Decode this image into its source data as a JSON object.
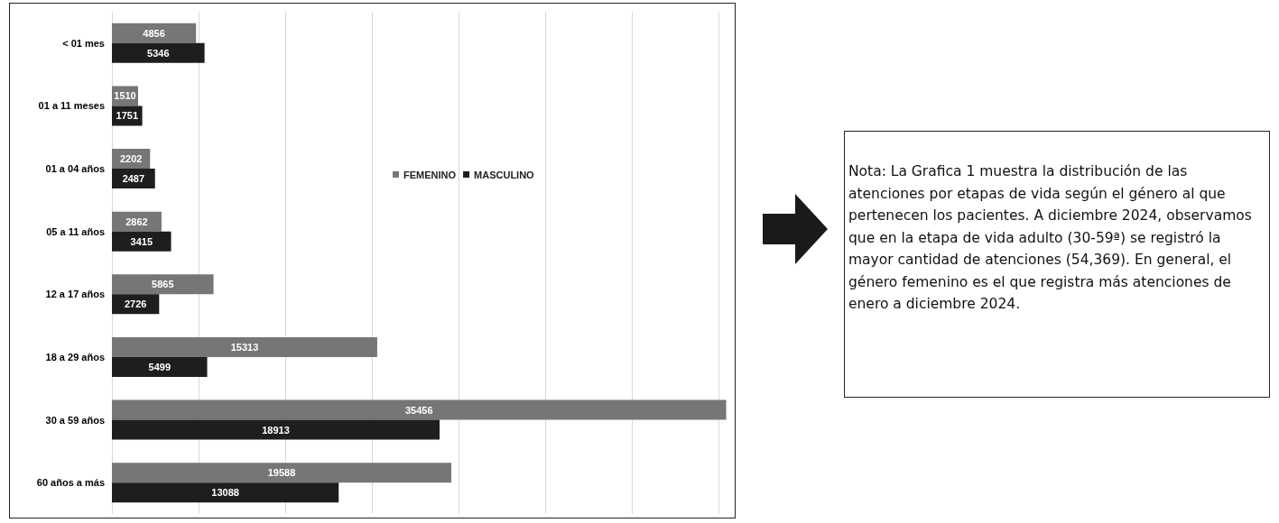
{
  "chart_data": {
    "type": "bar",
    "orientation": "horizontal",
    "categories": [
      "< 01 mes",
      "01 a 11 meses",
      "01 a 04 años",
      "05 a 11 años",
      "12 a 17 años",
      "18 a 29 años",
      "30 a 59 años",
      "60 años a más"
    ],
    "series": [
      {
        "name": "FEMENINO",
        "color": "#767676",
        "values": [
          4856,
          1510,
          2202,
          2862,
          5865,
          15313,
          35456,
          19588
        ]
      },
      {
        "name": "MASCULINO",
        "color": "#1e1e1e",
        "values": [
          5346,
          1751,
          2487,
          3415,
          2726,
          5499,
          18913,
          13088
        ]
      }
    ],
    "xlim": [
      0,
      36000
    ],
    "xticks": [
      {
        "value": 0,
        "label": null
      },
      {
        "value": 5000,
        "label": null
      },
      {
        "value": 10000,
        "label": null
      },
      {
        "value": 15000,
        "label": null
      },
      {
        "value": 20000,
        "label": null
      },
      {
        "value": 25000,
        "label": null
      },
      {
        "value": 30000,
        "label": null
      },
      {
        "value": 35000,
        "label": null
      }
    ],
    "tick_labels": "y",
    "grid": "x",
    "legend": "top",
    "data_labels": true,
    "annotations": [
      "Nota: La Grafica 1 muestra la distribución de las atenciones por etapas de vida según el género al que pertenecen los pacientes. A diciembre 2024, observamos que en la etapa de vida adulto (30-59ª) se registró la mayor cantidad de atenciones (54,369). En general, el género femenino es el que registra más atenciones de enero a diciembre 2024."
    ]
  }
}
